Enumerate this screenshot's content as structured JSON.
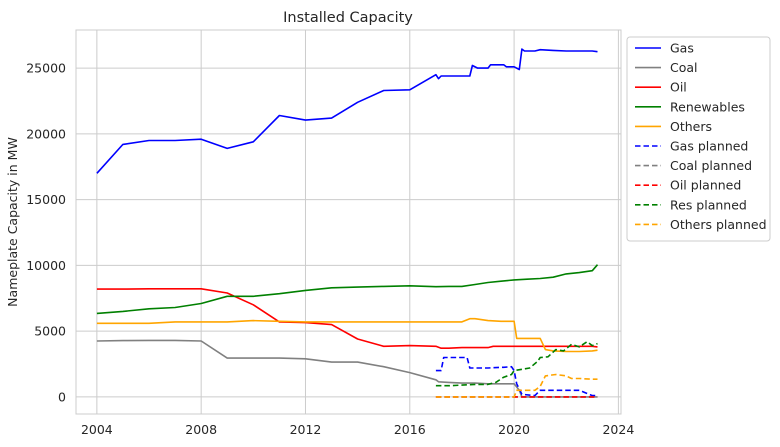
{
  "chart_data": {
    "type": "line",
    "title": "Installed Capacity",
    "xlabel": "",
    "ylabel": "Nameplate Capacity in MW",
    "xlim": [
      2003.2,
      2024.1
    ],
    "ylim": [
      -1300,
      27900
    ],
    "xticks": [
      2004,
      2008,
      2012,
      2016,
      2020,
      2024
    ],
    "yticks": [
      0,
      5000,
      10000,
      15000,
      20000,
      25000
    ],
    "grid": true,
    "legend_position": "outside-upper-right",
    "series": [
      {
        "name": "Gas",
        "color": "#0000ff",
        "dash": "solid",
        "x": [
          2004,
          2005,
          2006,
          2007,
          2008,
          2009,
          2010,
          2011,
          2012,
          2013,
          2014,
          2015,
          2016,
          2017.0,
          2017.1,
          2017.2,
          2018.3,
          2018.4,
          2018.6,
          2019.0,
          2019.1,
          2019.6,
          2019.7,
          2020.0,
          2020.2,
          2020.3,
          2020.4,
          2020.8,
          2021.0,
          2021.5,
          2022.0,
          2022.5,
          2023.0,
          2023.2
        ],
        "y": [
          17000,
          19200,
          19500,
          19500,
          19600,
          18900,
          19400,
          21400,
          21050,
          21200,
          22400,
          23300,
          23350,
          24500,
          24200,
          24400,
          24400,
          25200,
          25000,
          25000,
          25250,
          25250,
          25100,
          25100,
          24900,
          26450,
          26300,
          26300,
          26400,
          26350,
          26300,
          26300,
          26300,
          26250
        ]
      },
      {
        "name": "Coal",
        "color": "#808080",
        "dash": "solid",
        "x": [
          2004,
          2005,
          2006,
          2007,
          2008,
          2009,
          2010,
          2011,
          2012,
          2013,
          2014,
          2015,
          2016,
          2017.0,
          2017.1,
          2017.5,
          2018.0,
          2018.5,
          2019.0,
          2019.5,
          2020.0,
          2020.2,
          2020.3,
          2021.0,
          2022.0,
          2023.0,
          2023.2
        ],
        "y": [
          4250,
          4280,
          4300,
          4300,
          4250,
          2950,
          2950,
          2950,
          2900,
          2650,
          2650,
          2300,
          1850,
          1300,
          1150,
          1100,
          1050,
          1050,
          1000,
          1000,
          1000,
          500,
          0,
          0,
          0,
          0,
          0
        ]
      },
      {
        "name": "Oil",
        "color": "#ff0000",
        "dash": "solid",
        "x": [
          2004,
          2005,
          2006,
          2007,
          2008,
          2009,
          2010,
          2011,
          2012,
          2013,
          2014,
          2015,
          2016,
          2017.0,
          2017.2,
          2017.5,
          2018.0,
          2018.5,
          2019.0,
          2019.2,
          2020.0,
          2021.0,
          2022.0,
          2023.0,
          2023.2
        ],
        "y": [
          8200,
          8200,
          8220,
          8220,
          8220,
          7900,
          7000,
          5700,
          5650,
          5500,
          4400,
          3850,
          3900,
          3850,
          3700,
          3700,
          3750,
          3750,
          3750,
          3850,
          3850,
          3850,
          3850,
          3850,
          3800
        ]
      },
      {
        "name": "Renewables",
        "color": "#008000",
        "dash": "solid",
        "x": [
          2004,
          2005,
          2006,
          2007,
          2008,
          2009,
          2010,
          2011,
          2012,
          2013,
          2014,
          2015,
          2016,
          2017.0,
          2017.5,
          2018.0,
          2018.5,
          2019.0,
          2019.5,
          2020.0,
          2020.5,
          2021.0,
          2021.5,
          2022.0,
          2022.5,
          2023.0,
          2023.2
        ],
        "y": [
          6350,
          6500,
          6700,
          6800,
          7100,
          7650,
          7650,
          7850,
          8100,
          8300,
          8350,
          8400,
          8450,
          8380,
          8400,
          8400,
          8550,
          8700,
          8800,
          8900,
          8950,
          9000,
          9100,
          9350,
          9450,
          9600,
          10050
        ]
      },
      {
        "name": "Others",
        "color": "#ffa500",
        "dash": "solid",
        "x": [
          2004,
          2005,
          2006,
          2007,
          2008,
          2009,
          2010,
          2011,
          2012,
          2013,
          2014,
          2015,
          2016,
          2017.0,
          2018.0,
          2018.3,
          2018.5,
          2019.0,
          2019.5,
          2020.0,
          2020.1,
          2020.5,
          2021.0,
          2021.2,
          2021.5,
          2022.0,
          2022.5,
          2023.0,
          2023.2
        ],
        "y": [
          5600,
          5600,
          5600,
          5700,
          5700,
          5700,
          5800,
          5750,
          5700,
          5700,
          5700,
          5700,
          5700,
          5700,
          5700,
          5950,
          5950,
          5800,
          5750,
          5750,
          4450,
          4450,
          4450,
          3600,
          3500,
          3450,
          3450,
          3500,
          3550
        ]
      },
      {
        "name": "Gas planned",
        "color": "#0000ff",
        "dash": "dashed",
        "x": [
          2017.0,
          2017.2,
          2017.3,
          2018.0,
          2018.2,
          2018.3,
          2019.0,
          2019.5,
          2019.6,
          2019.9,
          2020.0,
          2020.1,
          2020.3,
          2020.8,
          2021.0,
          2021.5,
          2022.0,
          2022.5,
          2023.0,
          2023.2
        ],
        "y": [
          2000,
          2000,
          3000,
          3000,
          3000,
          2200,
          2200,
          2250,
          2250,
          2300,
          2000,
          1000,
          200,
          100,
          500,
          500,
          500,
          500,
          100,
          100
        ]
      },
      {
        "name": "Coal planned",
        "color": "#808080",
        "dash": "dashed",
        "x": [
          2017.0,
          2023.2
        ],
        "y": [
          0,
          0
        ]
      },
      {
        "name": "Oil planned",
        "color": "#ff0000",
        "dash": "dashed",
        "x": [
          2017.0,
          2023.2
        ],
        "y": [
          0,
          0
        ]
      },
      {
        "name": "Res planned",
        "color": "#008000",
        "dash": "dashed",
        "x": [
          2017.0,
          2017.5,
          2018.0,
          2018.5,
          2019.0,
          2019.3,
          2019.6,
          2019.9,
          2020.0,
          2020.3,
          2020.6,
          2020.9,
          2021.0,
          2021.3,
          2021.6,
          2021.9,
          2022.2,
          2022.5,
          2022.8,
          2023.0,
          2023.2
        ],
        "y": [
          850,
          850,
          900,
          950,
          950,
          1100,
          1500,
          1700,
          2000,
          2100,
          2200,
          2700,
          3000,
          3050,
          3600,
          3500,
          4000,
          3800,
          4200,
          3900,
          4050
        ]
      },
      {
        "name": "Others planned",
        "color": "#ffa500",
        "dash": "dashed",
        "x": [
          2017.0,
          2019.0,
          2020.0,
          2020.1,
          2020.8,
          2021.0,
          2021.2,
          2021.6,
          2022.0,
          2022.2,
          2022.5,
          2023.0,
          2023.2
        ],
        "y": [
          0,
          0,
          0,
          500,
          500,
          800,
          1600,
          1700,
          1600,
          1400,
          1400,
          1350,
          1350
        ]
      }
    ]
  }
}
